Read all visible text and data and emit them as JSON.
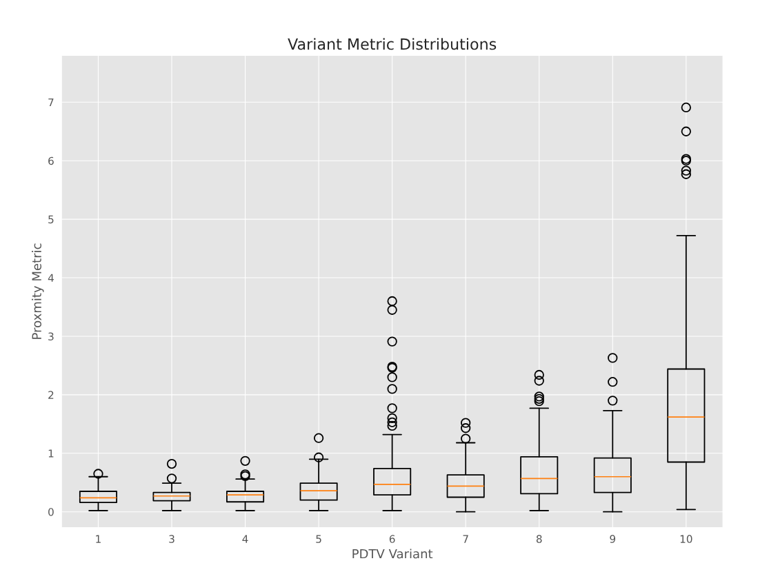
{
  "chart_data": {
    "type": "box",
    "title": "Variant Metric Distributions",
    "xlabel": "PDTV Variant",
    "ylabel": "Proxmity Metric",
    "categories": [
      "1",
      "3",
      "4",
      "5",
      "6",
      "7",
      "8",
      "9",
      "10"
    ],
    "boxes": [
      {
        "low": 0.02,
        "q1": 0.16,
        "median": 0.24,
        "q3": 0.35,
        "high": 0.6,
        "outliers": [
          0.65
        ]
      },
      {
        "low": 0.02,
        "q1": 0.19,
        "median": 0.27,
        "q3": 0.33,
        "high": 0.49,
        "outliers": [
          0.57,
          0.82
        ]
      },
      {
        "low": 0.02,
        "q1": 0.17,
        "median": 0.29,
        "q3": 0.35,
        "high": 0.56,
        "outliers": [
          0.61,
          0.64,
          0.87
        ]
      },
      {
        "low": 0.02,
        "q1": 0.2,
        "median": 0.36,
        "q3": 0.49,
        "high": 0.9,
        "outliers": [
          0.93,
          1.26
        ]
      },
      {
        "low": 0.02,
        "q1": 0.29,
        "median": 0.47,
        "q3": 0.74,
        "high": 1.32,
        "outliers": [
          1.47,
          1.53,
          1.6,
          1.77,
          2.1,
          2.3,
          2.46,
          2.48,
          2.91,
          3.45,
          3.6
        ]
      },
      {
        "low": 0.0,
        "q1": 0.25,
        "median": 0.44,
        "q3": 0.63,
        "high": 1.18,
        "outliers": [
          1.25,
          1.43,
          1.52
        ]
      },
      {
        "low": 0.02,
        "q1": 0.31,
        "median": 0.57,
        "q3": 0.94,
        "high": 1.77,
        "outliers": [
          1.89,
          1.93,
          1.97,
          2.24,
          2.34
        ]
      },
      {
        "low": 0.0,
        "q1": 0.33,
        "median": 0.6,
        "q3": 0.92,
        "high": 1.73,
        "outliers": [
          1.9,
          2.22,
          2.63
        ]
      },
      {
        "low": 0.04,
        "q1": 0.85,
        "median": 1.62,
        "q3": 2.44,
        "high": 4.72,
        "outliers": [
          5.77,
          5.83,
          6.0,
          6.03,
          6.5,
          6.91
        ]
      }
    ],
    "ylim": [
      -0.27,
      7.8
    ],
    "yticks": [
      0,
      1,
      2,
      3,
      4,
      5,
      6,
      7
    ],
    "grid": true
  }
}
